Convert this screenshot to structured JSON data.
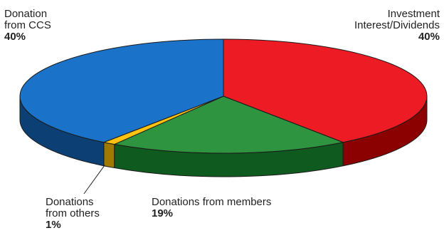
{
  "chart_data": {
    "type": "pie",
    "title": "",
    "slices": [
      {
        "label": "Investment\nInterest/Dividends",
        "value": 40,
        "pct_label": "40%",
        "color": "#ed1c24",
        "side_color": "#8b0000"
      },
      {
        "label": "Donations from members",
        "value": 19,
        "pct_label": "19%",
        "color": "#2e9440",
        "side_color": "#0f5a1e"
      },
      {
        "label": "Donations\nfrom others",
        "value": 1,
        "pct_label": "1%",
        "color": "#ffc20e",
        "side_color": "#a07a00"
      },
      {
        "label": "Donation\nfrom CCS",
        "value": 40,
        "pct_label": "40%",
        "color": "#1a73c8",
        "side_color": "#0c3f73"
      }
    ]
  }
}
